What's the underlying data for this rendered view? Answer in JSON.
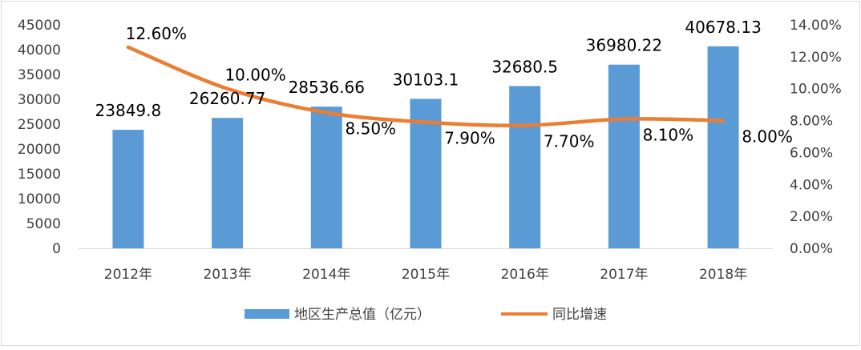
{
  "chart_data": {
    "type": "bar",
    "categories": [
      "2012年",
      "2013年",
      "2014年",
      "2015年",
      "2016年",
      "2017年",
      "2018年"
    ],
    "series": [
      {
        "name": "地区生产总值（亿元）",
        "type": "bar",
        "axis": "left",
        "values": [
          23849.8,
          26260.77,
          28536.66,
          30103.1,
          32680.5,
          36980.22,
          40678.13
        ],
        "labels": [
          "23849.8",
          "26260.77",
          "28536.66",
          "30103.1",
          "32680.5",
          "36980.22",
          "40678.13"
        ],
        "color": "#5B9BD5"
      },
      {
        "name": "同比增速",
        "type": "line",
        "axis": "right",
        "values": [
          0.126,
          0.1,
          0.085,
          0.079,
          0.077,
          0.081,
          0.08
        ],
        "labels": [
          "12.60%",
          "10.00%",
          "8.50%",
          "7.90%",
          "7.70%",
          "8.10%",
          "8.00%"
        ],
        "color": "#ED7D31"
      }
    ],
    "y_left": {
      "range": [
        0,
        45000
      ],
      "ticks": [
        "0",
        "5000",
        "10000",
        "15000",
        "20000",
        "25000",
        "30000",
        "35000",
        "40000",
        "45000"
      ]
    },
    "y_right": {
      "range": [
        0,
        0.14
      ],
      "ticks": [
        "0.00%",
        "2.00%",
        "4.00%",
        "6.00%",
        "8.00%",
        "10.00%",
        "12.00%",
        "14.00%"
      ]
    },
    "grid": false,
    "legend": "bottom"
  }
}
